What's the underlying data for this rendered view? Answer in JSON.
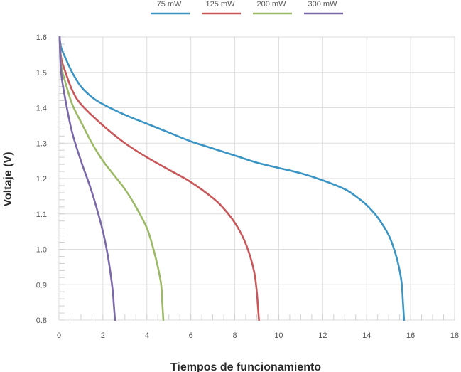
{
  "chart_data": {
    "type": "line",
    "xlabel": "Tiempos de funcionamiento",
    "ylabel": "Voltaje (V)",
    "xlim": [
      0,
      18
    ],
    "ylim": [
      0.8,
      1.6
    ],
    "x_ticks": [
      "0",
      "2",
      "4",
      "6",
      "8",
      "10",
      "12",
      "14",
      "16",
      "18"
    ],
    "y_ticks": [
      "0.8",
      "0.9",
      "1.0",
      "1.1",
      "1.2",
      "1.3",
      "1.4",
      "1.5",
      "1.6"
    ],
    "grid": true,
    "legend_position": "top-center",
    "series": [
      {
        "name": "75 mW",
        "color": "#3a94c4",
        "points": [
          [
            0.03,
            1.6
          ],
          [
            0.1,
            1.57
          ],
          [
            0.3,
            1.54
          ],
          [
            0.6,
            1.5
          ],
          [
            1,
            1.46
          ],
          [
            1.5,
            1.43
          ],
          [
            2,
            1.41
          ],
          [
            3,
            1.38
          ],
          [
            4,
            1.355
          ],
          [
            5,
            1.33
          ],
          [
            6,
            1.305
          ],
          [
            7,
            1.285
          ],
          [
            8,
            1.265
          ],
          [
            9,
            1.245
          ],
          [
            10,
            1.23
          ],
          [
            11,
            1.215
          ],
          [
            12,
            1.195
          ],
          [
            13,
            1.17
          ],
          [
            13.5,
            1.15
          ],
          [
            14,
            1.125
          ],
          [
            14.5,
            1.09
          ],
          [
            15,
            1.04
          ],
          [
            15.3,
            0.99
          ],
          [
            15.5,
            0.94
          ],
          [
            15.6,
            0.9
          ],
          [
            15.65,
            0.85
          ],
          [
            15.7,
            0.8
          ]
        ]
      },
      {
        "name": "125 mW",
        "color": "#c9575a",
        "points": [
          [
            0.03,
            1.6
          ],
          [
            0.1,
            1.54
          ],
          [
            0.3,
            1.5
          ],
          [
            0.6,
            1.45
          ],
          [
            1,
            1.41
          ],
          [
            2,
            1.35
          ],
          [
            3,
            1.3
          ],
          [
            4,
            1.26
          ],
          [
            5,
            1.225
          ],
          [
            6,
            1.19
          ],
          [
            7,
            1.145
          ],
          [
            7.5,
            1.115
          ],
          [
            8,
            1.075
          ],
          [
            8.4,
            1.03
          ],
          [
            8.7,
            0.98
          ],
          [
            8.9,
            0.93
          ],
          [
            9,
            0.88
          ],
          [
            9.05,
            0.84
          ],
          [
            9.1,
            0.8
          ]
        ]
      },
      {
        "name": "200 mW",
        "color": "#9cba66",
        "points": [
          [
            0.03,
            1.6
          ],
          [
            0.1,
            1.52
          ],
          [
            0.3,
            1.47
          ],
          [
            0.6,
            1.41
          ],
          [
            1,
            1.36
          ],
          [
            1.5,
            1.3
          ],
          [
            2,
            1.25
          ],
          [
            2.5,
            1.21
          ],
          [
            3,
            1.17
          ],
          [
            3.5,
            1.12
          ],
          [
            4,
            1.06
          ],
          [
            4.3,
            1.0
          ],
          [
            4.5,
            0.95
          ],
          [
            4.65,
            0.9
          ],
          [
            4.7,
            0.85
          ],
          [
            4.75,
            0.8
          ]
        ]
      },
      {
        "name": "300 mW",
        "color": "#7b68ab",
        "points": [
          [
            0.03,
            1.6
          ],
          [
            0.1,
            1.5
          ],
          [
            0.3,
            1.42
          ],
          [
            0.6,
            1.33
          ],
          [
            1,
            1.25
          ],
          [
            1.4,
            1.18
          ],
          [
            1.7,
            1.12
          ],
          [
            2,
            1.05
          ],
          [
            2.2,
            0.99
          ],
          [
            2.35,
            0.93
          ],
          [
            2.45,
            0.88
          ],
          [
            2.5,
            0.84
          ],
          [
            2.55,
            0.8
          ]
        ]
      }
    ]
  }
}
